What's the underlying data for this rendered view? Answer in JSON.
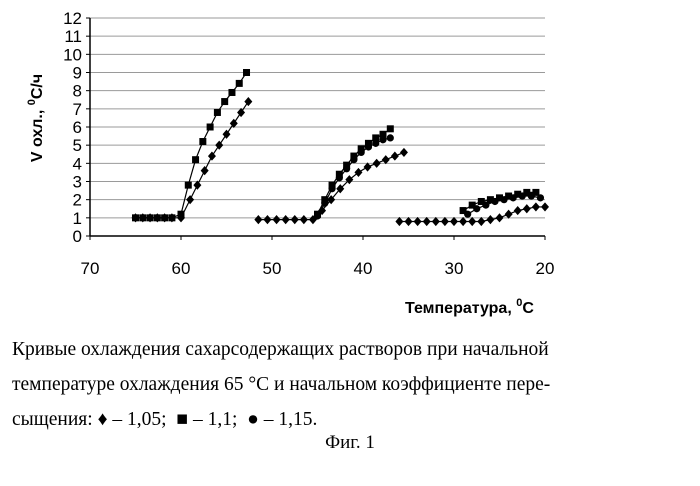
{
  "caption": {
    "line1": "Кривые охлаждения сахарсодержащих растворов при начальной",
    "line2": "температуре охлаждения 65 °С и начальном коэффициенте пере-",
    "line3_prefix": "сыщения: ",
    "legend": [
      {
        "symbol": "♦",
        "text": " – 1,05;  "
      },
      {
        "symbol": "■",
        "text": " – 1,1;  "
      },
      {
        "symbol": "●",
        "text": " – 1,15."
      }
    ],
    "figure_label": "Фиг. 1"
  },
  "chart_data": {
    "type": "scatter",
    "title": "",
    "xlabel": "Температура, °С",
    "ylabel": "V охл., °С/ч",
    "xlim": [
      70,
      20
    ],
    "ylim": [
      0,
      12
    ],
    "x_ticks": [
      70,
      60,
      50,
      40,
      30,
      20
    ],
    "y_ticks": [
      0,
      1,
      2,
      3,
      4,
      5,
      6,
      7,
      8,
      9,
      10,
      11,
      12
    ],
    "grid": "horizontal",
    "x_reversed": true,
    "series": [
      {
        "name": "1,05",
        "marker": "diamond",
        "color": "#000000",
        "x": [
          65,
          64.2,
          63.4,
          62.6,
          61.8,
          61,
          60,
          59,
          58.2,
          57.4,
          56.6,
          55.8,
          55,
          54.2,
          53.4,
          52.6
        ],
        "y": [
          1.0,
          1.0,
          1.0,
          1.0,
          1.0,
          1.0,
          1.0,
          2.0,
          2.8,
          3.6,
          4.4,
          5.0,
          5.6,
          6.2,
          6.8,
          7.4
        ]
      },
      {
        "name": "1,1",
        "marker": "square",
        "color": "#000000",
        "x": [
          65,
          64.2,
          63.4,
          62.6,
          61.8,
          61,
          60,
          59.2,
          58.4,
          57.6,
          56.8,
          56,
          55.2,
          54.4,
          53.6,
          52.8
        ],
        "y": [
          1.0,
          1.0,
          1.0,
          1.0,
          1.0,
          1.0,
          1.2,
          2.8,
          4.2,
          5.2,
          6.0,
          6.8,
          7.4,
          7.9,
          8.4,
          9.0
        ],
        "x_extra": [],
        "y_extra": []
      },
      {
        "name": "1,05",
        "marker": "diamond",
        "color": "#000000",
        "x": [
          51.5,
          50.5,
          49.5,
          48.5,
          47.5,
          46.5,
          45.5,
          44.5,
          43.5,
          42.5,
          41.5,
          40.5,
          39.5,
          38.5,
          37.5,
          36.5,
          35.5
        ],
        "y": [
          0.9,
          0.9,
          0.9,
          0.9,
          0.9,
          0.9,
          0.9,
          1.4,
          2.0,
          2.6,
          3.1,
          3.5,
          3.8,
          4.0,
          4.2,
          4.4,
          4.6
        ]
      },
      {
        "name": "1,1",
        "marker": "square",
        "color": "#000000",
        "x": [
          45,
          44.2,
          43.4,
          42.6,
          41.8,
          41,
          40.2,
          39.4,
          38.6,
          37.8,
          37
        ],
        "y": [
          1.2,
          2.0,
          2.8,
          3.4,
          3.9,
          4.4,
          4.8,
          5.1,
          5.4,
          5.6,
          5.9
        ]
      },
      {
        "name": "1,15",
        "marker": "circle",
        "color": "#000000",
        "x": [
          45,
          44.2,
          43.4,
          42.6,
          41.8,
          41,
          40.2,
          39.4,
          38.6,
          37.8,
          37
        ],
        "y": [
          1.1,
          1.8,
          2.6,
          3.2,
          3.7,
          4.2,
          4.6,
          4.9,
          5.1,
          5.3,
          5.4
        ]
      },
      {
        "name": "1,05",
        "marker": "diamond",
        "color": "#000000",
        "x": [
          36,
          35,
          34,
          33,
          32,
          31,
          30,
          29,
          28,
          27,
          26,
          25,
          24,
          23,
          22,
          21,
          20
        ],
        "y": [
          0.8,
          0.8,
          0.8,
          0.8,
          0.8,
          0.8,
          0.8,
          0.8,
          0.8,
          0.8,
          0.9,
          1.0,
          1.2,
          1.4,
          1.5,
          1.6,
          1.6
        ]
      },
      {
        "name": "1,1",
        "marker": "square",
        "color": "#000000",
        "x": [
          29,
          28,
          27,
          26,
          25,
          24,
          23,
          22,
          21
        ],
        "y": [
          1.4,
          1.7,
          1.9,
          2.0,
          2.1,
          2.2,
          2.3,
          2.4,
          2.4
        ]
      },
      {
        "name": "1,15",
        "marker": "circle",
        "color": "#000000",
        "x": [
          28.5,
          27.5,
          26.5,
          25.5,
          24.5,
          23.5,
          22.5,
          21.5,
          20.5
        ],
        "y": [
          1.2,
          1.5,
          1.7,
          1.9,
          2.0,
          2.1,
          2.2,
          2.2,
          2.1
        ]
      }
    ]
  }
}
